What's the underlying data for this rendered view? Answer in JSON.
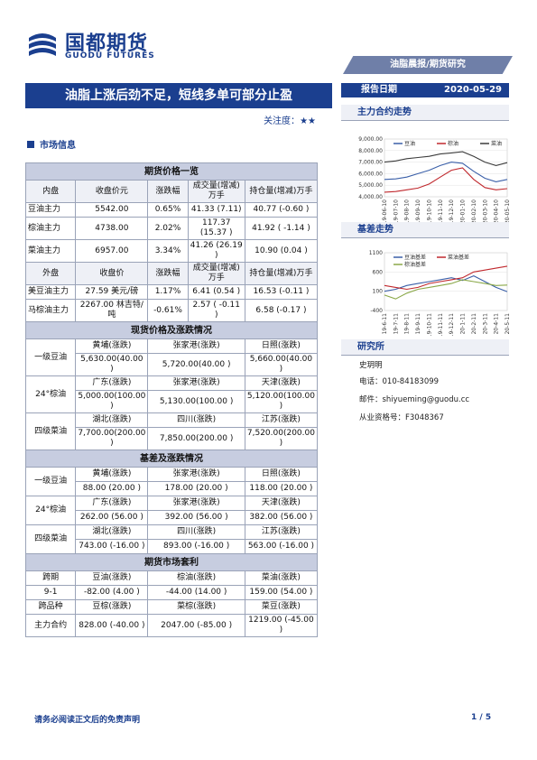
{
  "header": {
    "logo_cn": "国都期货",
    "logo_en": "GUODU FUTURES",
    "report_type": "油脂晨报/期货研究",
    "title": "油脂上涨后劲不足，短线多单可部分止盈",
    "date_label": "报告日期",
    "date_value": "2020-05-29",
    "attention_label": "关注度：",
    "attention_stars": "★★"
  },
  "section_market": "市场信息",
  "table": {
    "futures_title": "期货价格一览",
    "domestic_header": [
      "内盘",
      "收盘价元",
      "涨跌幅",
      "成交量(增减)万手",
      "持仓量(增减)万手"
    ],
    "domestic_rows": [
      [
        "豆油主力",
        "5542.00",
        "0.65%",
        "41.33 (7.11)",
        "40.77 (-0.60 )"
      ],
      [
        "棕油主力",
        "4738.00",
        "2.02%",
        "117.37 (15.37 )",
        "41.92 ( -1.14 )"
      ],
      [
        "菜油主力",
        "6957.00",
        "3.34%",
        "41.26 (26.19 )",
        "10.90 (0.04 )"
      ]
    ],
    "foreign_header": [
      "外盘",
      "收盘价",
      "涨跌幅",
      "成交量(增减)万手",
      "持仓量(增减)万手"
    ],
    "foreign_rows": [
      [
        "美豆油主力",
        "27.59 美元/磅",
        "1.17%",
        "6.41 (0.54 )",
        "16.53 (-0.11 )"
      ],
      [
        "马棕油主力",
        "2267.00 林吉特/吨",
        "-0.61%",
        "2.57 ( -0.11 )",
        "6.58 (-0.17 )"
      ]
    ],
    "spot_title": "现货价格及涨跌情况",
    "spot_groups": [
      {
        "name": "一级豆油",
        "regions": [
          "黄埔(涨跌)",
          "张家港(涨跌)",
          "日照(涨跌)"
        ],
        "values": [
          "5,630.00(40.00 )",
          "5,720.00(40.00 )",
          "5,660.00(40.00 )"
        ]
      },
      {
        "name": "24°棕油",
        "regions": [
          "广东(涨跌)",
          "张家港(涨跌)",
          "天津(涨跌)"
        ],
        "values": [
          "5,000.00(100.00 )",
          "5,130.00(100.00 )",
          "5,120.00(100.00 )"
        ]
      },
      {
        "name": "四级菜油",
        "regions": [
          "湖北(涨跌)",
          "四川(涨跌)",
          "江苏(涨跌)"
        ],
        "values": [
          "7,700.00(200.00 )",
          "7,850.00(200.00 )",
          "7,520.00(200.00 )"
        ]
      }
    ],
    "basis_title": "基差及涨跌情况",
    "basis_groups": [
      {
        "name": "一级豆油",
        "regions": [
          "黄埔(涨跌)",
          "张家港(涨跌)",
          "日照(涨跌)"
        ],
        "values": [
          "88.00 (20.00 )",
          "178.00 (20.00 )",
          "118.00 (20.00 )"
        ]
      },
      {
        "name": "24°棕油",
        "regions": [
          "广东(涨跌)",
          "张家港(涨跌)",
          "天津(涨跌)"
        ],
        "values": [
          "262.00 (56.00 )",
          "392.00 (56.00 )",
          "382.00 (56.00 )"
        ]
      },
      {
        "name": "四级菜油",
        "regions": [
          "湖北(涨跌)",
          "四川(涨跌)",
          "江苏(涨跌)"
        ],
        "values": [
          "743.00 (-16.00 )",
          "893.00 (-16.00 )",
          "563.00 (-16.00 )"
        ]
      }
    ],
    "arb_title": "期货市场套利",
    "arb_header1": [
      "跨期",
      "豆油(涨跌)",
      "棕油(涨跌)",
      "菜油(涨跌)"
    ],
    "arb_row1": [
      "9-1",
      "-82.00 (4.00 )",
      "-44.00  (14.00 )",
      "159.00  (54.00 )"
    ],
    "arb_header2": [
      "跨品种",
      "豆棕(涨跌)",
      "菜棕(涨跌)",
      "菜豆(涨跌)"
    ],
    "arb_row2": [
      "主力合约",
      "828.00 (-40.00 )",
      "2047.00 (-85.00 )",
      "1219.00 (-45.00 )"
    ]
  },
  "side": {
    "chart1_title": "主力合约走势",
    "chart2_title": "基差走势",
    "research_title": "研究所",
    "analyst": "史玥明",
    "phone": "电话：010-84183099",
    "email": "邮件：shiyueming@guodu.cc",
    "license": "从业资格号：F3048367"
  },
  "footer": {
    "disclaimer": "请务必阅读正文后的免责声明",
    "page": "1 / 5"
  },
  "chart_data": [
    {
      "type": "line",
      "title": "主力合约走势",
      "x": [
        "2019-06-10",
        "2019-07-10",
        "2019-08-10",
        "2019-09-10",
        "2019-10-10",
        "2019-11-10",
        "2019-12-10",
        "2020-01-10",
        "2020-02-10",
        "2020-03-10",
        "2020-04-10",
        "2020-05-10"
      ],
      "ylim": [
        4000,
        9000
      ],
      "yticks": [
        "4,000.00",
        "5,000.00",
        "6,000.00",
        "7,000.00",
        "8,000.00",
        "9,000.00"
      ],
      "legend": "top",
      "colors": {
        "豆油": "#3a5fa8",
        "棕油": "#c0282d",
        "菜油": "#3c3c3c"
      },
      "series": [
        {
          "name": "豆油",
          "values": [
            5500,
            5550,
            5700,
            6000,
            6300,
            6700,
            7000,
            6900,
            6200,
            5600,
            5300,
            5500
          ]
        },
        {
          "name": "棕油",
          "values": [
            4400,
            4450,
            4600,
            4750,
            5100,
            5700,
            6300,
            6500,
            5500,
            4800,
            4600,
            4700
          ]
        },
        {
          "name": "菜油",
          "values": [
            7000,
            7100,
            7300,
            7400,
            7500,
            7700,
            7800,
            7900,
            7500,
            7000,
            6700,
            6950
          ]
        }
      ]
    },
    {
      "type": "line",
      "title": "基差走势",
      "x": [
        "19-6-11",
        "19-7-11",
        "19-8-11",
        "19-9-11",
        "19-10-11",
        "19-11-11",
        "19-12-11",
        "20-1-11",
        "20-2-11",
        "20-3-11",
        "20-4-11",
        "20-5-11"
      ],
      "ylim": [
        -400,
        1100
      ],
      "yticks": [
        "-400",
        "100",
        "600",
        "1100"
      ],
      "legend": "top",
      "colors": {
        "豆油基差": "#3a5fa8",
        "菜油基差": "#c0282d",
        "棕油基差": "#8aa848"
      },
      "series": [
        {
          "name": "豆油基差",
          "values": [
            100,
            150,
            250,
            300,
            350,
            400,
            450,
            380,
            500,
            350,
            200,
            90
          ]
        },
        {
          "name": "菜油基差",
          "values": [
            250,
            200,
            150,
            200,
            300,
            350,
            400,
            450,
            600,
            650,
            700,
            750
          ]
        },
        {
          "name": "棕油基差",
          "values": [
            0,
            -100,
            50,
            150,
            200,
            250,
            300,
            400,
            350,
            300,
            250,
            260
          ]
        }
      ]
    }
  ]
}
